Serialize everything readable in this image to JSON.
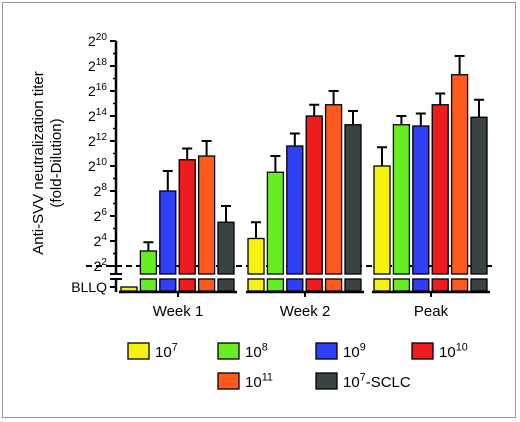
{
  "chart_data": {
    "type": "bar",
    "ylabel_line1": "Anti-SVV neutralization titer",
    "ylabel_line2": "(fold-Dilution)",
    "y_scale": "log2",
    "y_ticks": [
      {
        "base": "2",
        "exp": "2"
      },
      {
        "base": "2",
        "exp": "4"
      },
      {
        "base": "2",
        "exp": "6"
      },
      {
        "base": "2",
        "exp": "8"
      },
      {
        "base": "2",
        "exp": "10"
      },
      {
        "base": "2",
        "exp": "12"
      },
      {
        "base": "2",
        "exp": "14"
      },
      {
        "base": "2",
        "exp": "16"
      },
      {
        "base": "2",
        "exp": "18"
      },
      {
        "base": "2",
        "exp": "20"
      }
    ],
    "ylim_log2": [
      2,
      20
    ],
    "bllq_label": "BLLQ",
    "limit_line_log2": 2,
    "categories": [
      "Week 1",
      "Week 2",
      "Peak"
    ],
    "series": [
      {
        "name_base": "10",
        "name_exp": "7",
        "suffix": "",
        "color": "#f6f20f",
        "values_log2": [
          "BLLQ",
          4.2,
          10.0
        ],
        "errors_log2": [
          0,
          1.3,
          1.5
        ]
      },
      {
        "name_base": "10",
        "name_exp": "8",
        "suffix": "",
        "color": "#66ee22",
        "values_log2": [
          3.2,
          9.5,
          13.3
        ],
        "errors_log2": [
          0.7,
          1.3,
          0.7
        ]
      },
      {
        "name_base": "10",
        "name_exp": "9",
        "suffix": "",
        "color": "#2f3ff5",
        "values_log2": [
          8.0,
          11.6,
          13.2
        ],
        "errors_log2": [
          1.6,
          1.0,
          1.0
        ]
      },
      {
        "name_base": "10",
        "name_exp": "10",
        "suffix": "",
        "color": "#ee1c1c",
        "values_log2": [
          10.5,
          14.0,
          14.9
        ],
        "errors_log2": [
          0.9,
          0.9,
          0.9
        ]
      },
      {
        "name_base": "10",
        "name_exp": "11",
        "suffix": "",
        "color": "#ff5a1e",
        "values_log2": [
          10.8,
          14.9,
          17.3
        ],
        "errors_log2": [
          1.2,
          1.1,
          1.5
        ]
      },
      {
        "name_base": "10",
        "name_exp": "7",
        "suffix": "-SCLC",
        "color": "#3c4345",
        "values_log2": [
          5.5,
          13.3,
          13.9
        ],
        "errors_log2": [
          1.3,
          1.1,
          1.4
        ]
      }
    ]
  }
}
